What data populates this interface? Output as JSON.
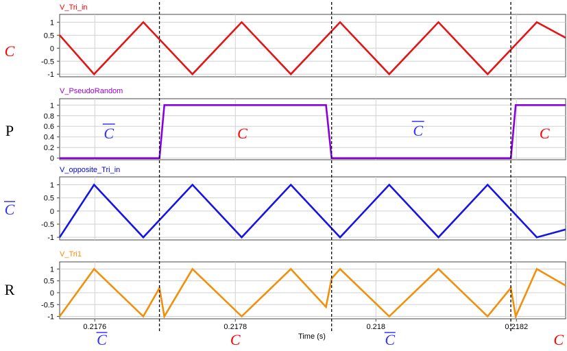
{
  "chart_data": [
    {
      "type": "line",
      "title": "V_Tri_in",
      "title_color": "#ff0000",
      "side_label": "C",
      "side_color": "#ff0000",
      "side_italic": true,
      "side_overline": false,
      "color": "#e41414",
      "ylim": [
        -1.1,
        1.3
      ],
      "yticks": [
        1,
        0.5,
        0,
        -0.5,
        -1
      ],
      "ytick_labels": [
        "1",
        "0.5",
        "0",
        "-0.5",
        "-1"
      ],
      "x": [
        0.21755,
        0.217599,
        0.217669,
        0.217739,
        0.217809,
        0.217879,
        0.217949,
        0.218019,
        0.218089,
        0.218159,
        0.218229,
        0.21827
      ],
      "y": [
        0.5,
        -1,
        1,
        -1,
        1,
        -1,
        1,
        -1,
        1,
        -1,
        1,
        0.4
      ],
      "annotations": []
    },
    {
      "type": "line",
      "title": "V_PseudoRandom",
      "title_color": "#9900cc",
      "side_label": "P",
      "side_color": "#000000",
      "side_italic": false,
      "side_overline": false,
      "color": "#8800dd",
      "ylim": [
        -0.03,
        1.12
      ],
      "yticks": [
        1,
        0.8,
        0.6,
        0.4,
        0.2,
        0
      ],
      "ytick_labels": [
        "1",
        "0.8",
        "0.6",
        "0.4",
        "0.2",
        "0"
      ],
      "x": [
        0.21755,
        0.217692,
        0.217699,
        0.217929,
        0.217937,
        0.218192,
        0.218199,
        0.21827
      ],
      "y": [
        0,
        0,
        1,
        1,
        0,
        0,
        1,
        1
      ],
      "annotations": [
        {
          "text": "C",
          "x": 0.21762,
          "y": 0.5,
          "color": "#3333ff",
          "overline": true
        },
        {
          "text": "C",
          "x": 0.21781,
          "y": 0.5,
          "color": "#ff0000",
          "overline": false
        },
        {
          "text": "C",
          "x": 0.21806,
          "y": 0.55,
          "color": "#3333ff",
          "overline": true
        },
        {
          "text": "C",
          "x": 0.21824,
          "y": 0.5,
          "color": "#ff0000",
          "overline": false
        }
      ]
    },
    {
      "type": "line",
      "title": "V_opposite_Tri_in",
      "title_color": "#0000ff",
      "side_label": "C",
      "side_color": "#3333ff",
      "side_italic": true,
      "side_overline": true,
      "color": "#1414e6",
      "ylim": [
        -1.1,
        1.3
      ],
      "yticks": [
        1,
        0.5,
        0,
        -0.5,
        -1
      ],
      "ytick_labels": [
        "1",
        "0.5",
        "0",
        "-0.5",
        "-1"
      ],
      "x": [
        0.21755,
        0.217599,
        0.217669,
        0.217739,
        0.217809,
        0.217879,
        0.217949,
        0.218019,
        0.218089,
        0.218159,
        0.218229,
        0.21827
      ],
      "y": [
        -1,
        1,
        -1,
        1,
        -1,
        1,
        -1,
        1,
        -1,
        1,
        -1,
        -0.7
      ],
      "annotations": []
    },
    {
      "type": "line",
      "title": "V_Tri1",
      "title_color": "#ff8800",
      "side_label": "R",
      "side_color": "#000000",
      "side_italic": false,
      "side_overline": false,
      "color": "#f0900a",
      "ylim": [
        -1.1,
        1.3
      ],
      "yticks": [
        1,
        0.5,
        0,
        -0.5,
        -1
      ],
      "ytick_labels": [
        "1",
        "0.5",
        "0",
        "-0.5",
        "-1"
      ],
      "x": [
        0.21755,
        0.217599,
        0.217634,
        0.217669,
        0.217692,
        0.217699,
        0.217739,
        0.217809,
        0.217879,
        0.217929,
        0.217937,
        0.217949,
        0.218019,
        0.218089,
        0.218159,
        0.218192,
        0.218199,
        0.218229,
        0.21827
      ],
      "y": [
        -1,
        1,
        0,
        -1,
        0.2,
        -1,
        1,
        -1,
        1,
        -0.6,
        0.6,
        1,
        -1,
        1,
        -1,
        0.2,
        -1,
        1,
        0.3
      ],
      "annotations": []
    }
  ],
  "xaxis": {
    "label": "Time (s)",
    "xlim": [
      0.21755,
      0.21827
    ],
    "ticks": [
      0.2176,
      0.2178,
      0.218,
      0.2182
    ],
    "tick_labels": [
      "0.2176",
      "0.2178",
      "0.218",
      "0.2182"
    ],
    "grid": true
  },
  "switch_lines": [
    0.217692,
    0.217937,
    0.218192
  ],
  "bottom_labels": [
    {
      "text": "C",
      "x": 0.21761,
      "color": "#3333ff",
      "overline": true
    },
    {
      "text": "C",
      "x": 0.2178,
      "color": "#ff0000",
      "overline": false
    },
    {
      "text": "C",
      "x": 0.21802,
      "color": "#3333ff",
      "overline": true
    },
    {
      "text": "C",
      "x": 0.21826,
      "color": "#ff0000",
      "overline": false
    }
  ]
}
